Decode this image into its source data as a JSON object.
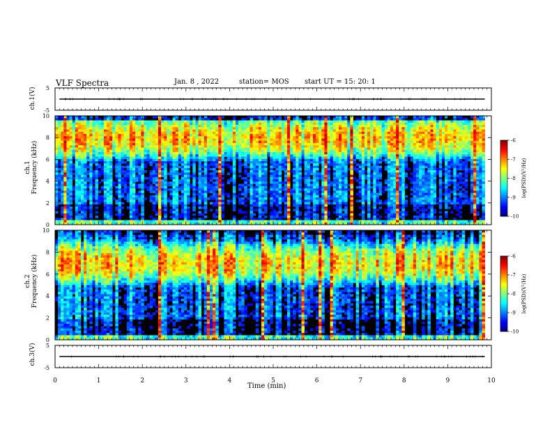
{
  "header": {
    "title": "VLF Spectra",
    "date": "Jan. 8 , 2022",
    "station": "station= MOS",
    "start": "start UT = 15: 20: 1"
  },
  "colors": {
    "jet": [
      "#00007f",
      "#0000ff",
      "#00ffff",
      "#ffff00",
      "#ff0000",
      "#ffffff"
    ],
    "background_low": "#000000",
    "waveform": "#000000"
  },
  "chart_data": [
    {
      "type": "line",
      "name": "ch1-waveform",
      "ylabel": "ch.1(V)",
      "ylim": [
        -5,
        5
      ],
      "yticks": [
        "5",
        "-5"
      ],
      "x": [
        0,
        10
      ],
      "y": [
        0,
        0
      ]
    },
    {
      "type": "heatmap",
      "name": "ch1-spectrogram",
      "ylabel": "ch.1\nFrequency (kHz)",
      "ylim": [
        0,
        10
      ],
      "yticks": [
        "0",
        "2",
        "4",
        "6",
        "8",
        "10"
      ],
      "xlim": [
        0,
        9.85
      ],
      "peak_band_khz": [
        7,
        9
      ],
      "colorbar": {
        "label": "log(PSD)(V²/Hz)",
        "range": [
          -10,
          -6
        ],
        "ticks": [
          "-6",
          "-7",
          "-8",
          "-9",
          "-10"
        ]
      }
    },
    {
      "type": "heatmap",
      "name": "ch2-spectrogram",
      "ylabel": "ch.2\nFrequency (kHz)",
      "ylim": [
        0,
        10
      ],
      "yticks": [
        "0",
        "2",
        "4",
        "6",
        "8",
        "10"
      ],
      "xlim": [
        0,
        9.85
      ],
      "peak_band_khz": [
        6,
        8
      ],
      "colorbar": {
        "label": "log(PSD)(V²/Hz)",
        "range": [
          -10,
          -6
        ],
        "ticks": [
          "-6",
          "-7",
          "-8",
          "-9",
          "-10"
        ]
      }
    },
    {
      "type": "line",
      "name": "ch3-waveform",
      "ylabel": "ch.3(V)",
      "ylim": [
        -5,
        5
      ],
      "yticks": [
        "5",
        "-5"
      ],
      "x": [
        0,
        10
      ],
      "y": [
        0,
        0
      ]
    }
  ],
  "x_axis": {
    "label": "Time (min)",
    "range": [
      0,
      10
    ],
    "ticks": [
      "0",
      "1",
      "2",
      "3",
      "4",
      "5",
      "6",
      "7",
      "8",
      "9",
      "10"
    ]
  }
}
